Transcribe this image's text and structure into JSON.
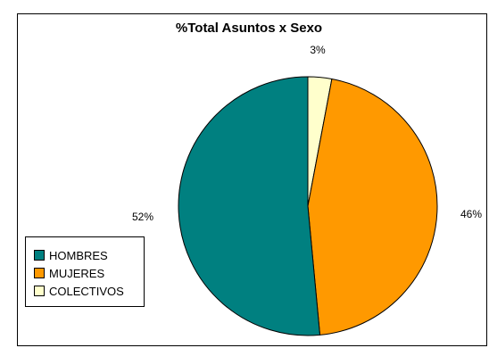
{
  "chart_data": {
    "type": "pie",
    "title": "%Total Asuntos x Sexo",
    "categories": [
      "HOMBRES",
      "MUJERES",
      "COLECTIVOS"
    ],
    "values": [
      52,
      46,
      3
    ],
    "value_labels": [
      "52%",
      "46%",
      "3%"
    ],
    "unit": "%",
    "colors": [
      "#008080",
      "#FF9900",
      "#FFFFCC"
    ],
    "legend_position": "left-bottom",
    "start_angle": "top, clockwise"
  }
}
